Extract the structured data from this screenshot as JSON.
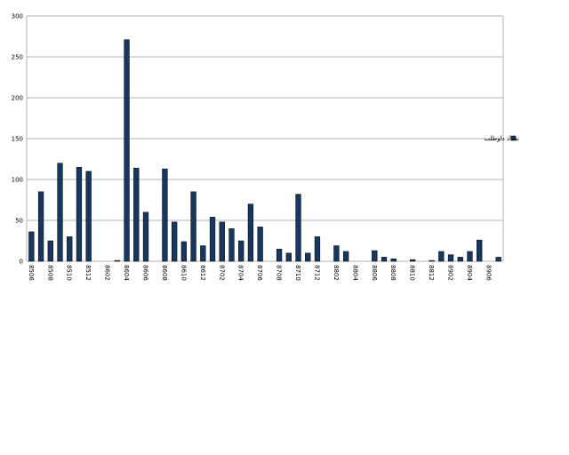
{
  "chart_data": {
    "type": "bar",
    "categories": [
      "8506",
      null,
      "8508",
      null,
      "8510",
      null,
      "8512",
      null,
      "8602",
      null,
      "8604",
      null,
      "8606",
      null,
      "8608",
      null,
      "8610",
      null,
      "8612",
      null,
      "8702",
      null,
      "8704",
      null,
      "8706",
      null,
      "8708",
      null,
      "8710",
      null,
      "8712",
      null,
      "8802",
      null,
      "8804",
      null,
      "8806",
      null,
      "8808",
      null,
      "8810",
      null,
      "8812",
      null,
      "8902",
      null,
      "8904",
      null,
      "8906",
      null
    ],
    "series": [
      {
        "name": "تعداد داوطلب",
        "color": "#17375e",
        "values": [
          36,
          85,
          25,
          120,
          30,
          115,
          110,
          0,
          0,
          1,
          271,
          114,
          60,
          0,
          113,
          48,
          24,
          85,
          19,
          54,
          48,
          40,
          25,
          70,
          42,
          0,
          15,
          10,
          82,
          10,
          30,
          0,
          19,
          12,
          0,
          0,
          13,
          5,
          3,
          0,
          2,
          0,
          1,
          12,
          8,
          5,
          12,
          26,
          0,
          5
        ]
      }
    ],
    "ylim": [
      0,
      300
    ],
    "yticks": [
      0,
      50,
      100,
      150,
      200,
      250,
      300
    ],
    "grid": true,
    "legend": "right"
  }
}
